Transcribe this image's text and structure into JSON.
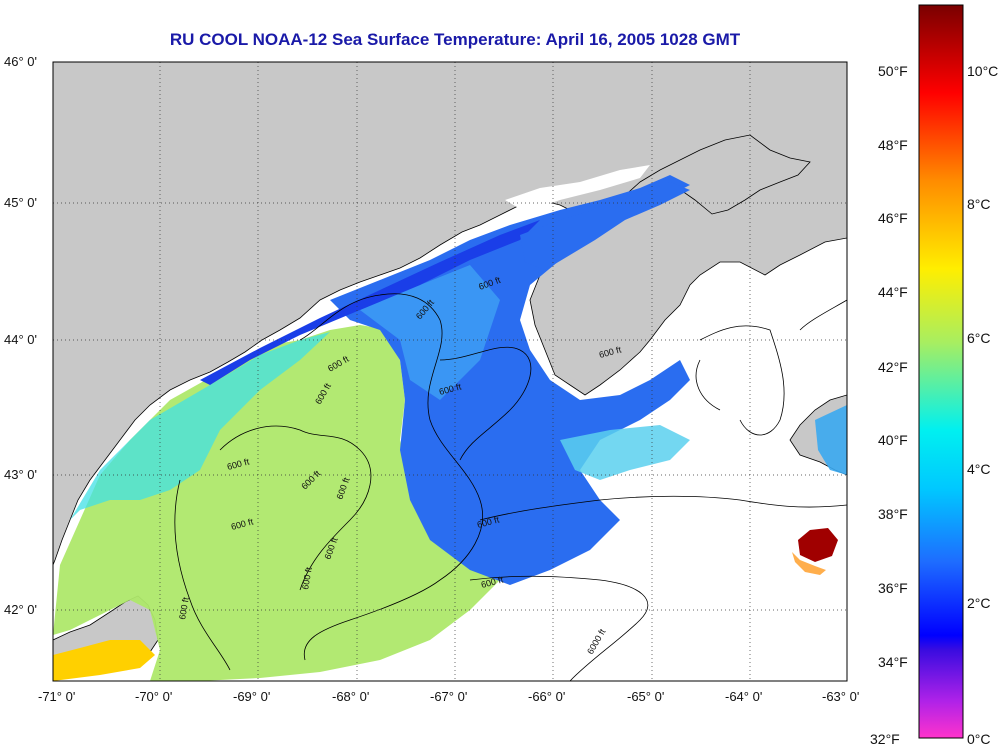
{
  "title": "RU COOL  NOAA-12  Sea Surface Temperature:  April 16, 2005 1028 GMT",
  "lat_labels": [
    "46° 0'",
    "45° 0'",
    "44° 0'",
    "43° 0'",
    "42° 0'"
  ],
  "lon_labels": [
    "-71° 0'",
    "-70° 0'",
    "-69° 0'",
    "-68° 0'",
    "-67° 0'",
    "-66° 0'",
    "-65° 0'",
    "-64° 0'",
    "-63° 0'"
  ],
  "colorbar": {
    "fahrenheit_labels": [
      "50°F",
      "48°F",
      "46°F",
      "44°F",
      "42°F",
      "40°F",
      "38°F",
      "36°F",
      "34°F",
      "32°F"
    ],
    "celsius_labels": [
      "10°C",
      "8°C",
      "6°C",
      "4°C",
      "2°C",
      "0°C"
    ],
    "colors": [
      "#ff33cc",
      "#7a22ee",
      "#0000ff",
      "#1e6cff",
      "#00e0ff",
      "#a8ee60",
      "#ffee00",
      "#ff8c00",
      "#ff0000",
      "#7a0000"
    ]
  },
  "contour_labels": [
    "600 ft",
    "600 ft",
    "600 ft",
    "600 ft",
    "600 ft",
    "600 ft",
    "600 ft",
    "600 ft",
    "600 ft",
    "600 ft",
    "600 ft",
    "600 ft",
    "600 ft",
    "600 ft",
    "600 ft",
    "6000 ft"
  ],
  "colors": {
    "land": "#c8c8c8",
    "no_data": "#ffffff",
    "title": "#1a1aa8"
  }
}
